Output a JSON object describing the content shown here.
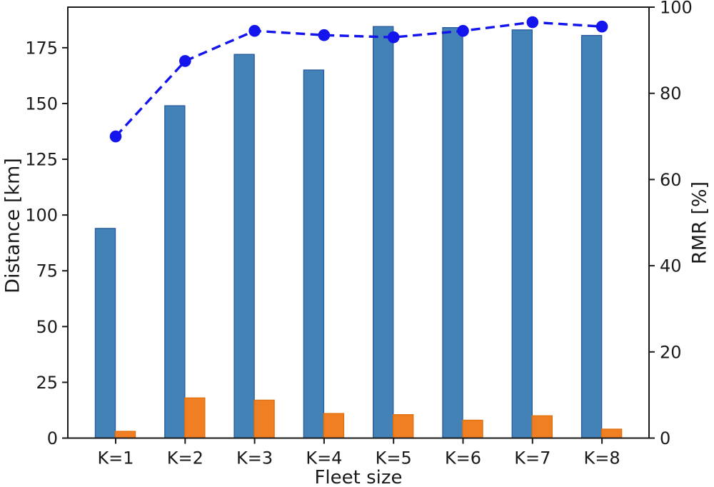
{
  "chart_data": {
    "type": "bar",
    "title": "",
    "categories": [
      "K=1",
      "K=2",
      "K=3",
      "K=4",
      "K=5",
      "K=6",
      "K=7",
      "K=8"
    ],
    "series": [
      {
        "name": "distance-blue-bars",
        "type": "bar",
        "yaxis": "left",
        "values": [
          94,
          149,
          172,
          165,
          184.5,
          184,
          183,
          180.5
        ]
      },
      {
        "name": "distance-orange-bars",
        "type": "bar",
        "yaxis": "left",
        "values": [
          3,
          18,
          17,
          11,
          10.5,
          8,
          10,
          4
        ]
      },
      {
        "name": "rmr-dashed-line",
        "type": "line",
        "yaxis": "right",
        "line_style": "dashed",
        "marker": "circle",
        "values": [
          70,
          87.5,
          94.5,
          93.5,
          93,
          94.5,
          96.5,
          95.5
        ]
      }
    ],
    "xlabel": "Fleet size",
    "ylabel_left": "Distance [km]",
    "ylabel_right": "RMR [%]",
    "yticks_left": [
      0,
      25,
      50,
      75,
      100,
      125,
      150,
      175
    ],
    "yticks_right": [
      0,
      20,
      40,
      60,
      80,
      100
    ],
    "ylim_left": [
      0,
      193.2
    ],
    "ylim_right": [
      0,
      100
    ],
    "grid": false,
    "legend": "none"
  },
  "colors": {
    "bar_blue": "#4382b6",
    "bar_blue_edge": "#2a5d9f",
    "bar_orange": "#f07e23",
    "bar_orange_edge": "#e0710f",
    "line_blue": "#1414ec",
    "axis": "#1a1a1a",
    "background": "#ffffff"
  }
}
